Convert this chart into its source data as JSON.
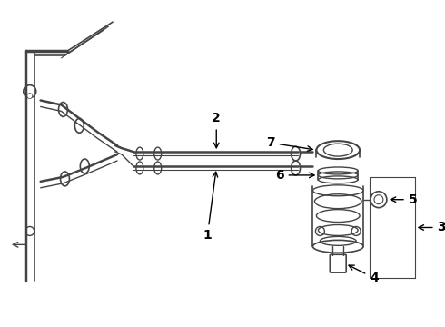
{
  "background_color": "#ffffff",
  "line_color": "#444444",
  "fig_width": 4.9,
  "fig_height": 3.6,
  "dpi": 100
}
